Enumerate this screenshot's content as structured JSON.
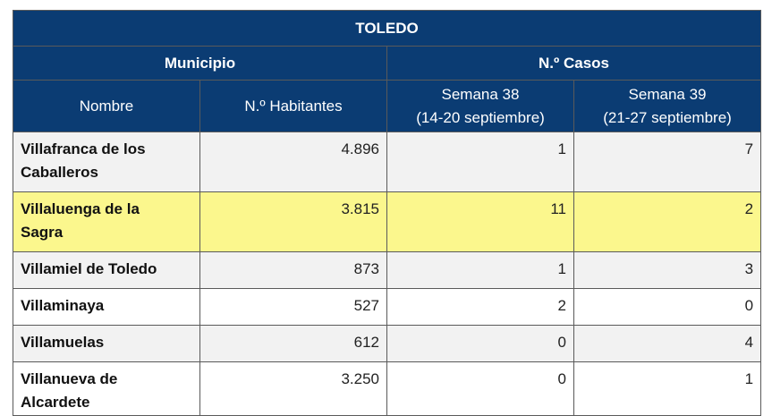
{
  "table": {
    "title": "TOLEDO",
    "group_headers": [
      "Municipio",
      "N.º Casos"
    ],
    "col_headers": [
      {
        "line1": "Nombre",
        "line2": ""
      },
      {
        "line1": "N.º Habitantes",
        "line2": ""
      },
      {
        "line1": "Semana 38",
        "line2": "(14-20 septiembre)"
      },
      {
        "line1": "Semana 39",
        "line2": "(21-27 septiembre)"
      }
    ],
    "rows": [
      {
        "name_l1": "Villafranca de los",
        "name_l2": "Caballeros",
        "habitantes": "4.896",
        "s38": "1",
        "s39": "7"
      },
      {
        "name_l1": "Villaluenga de la",
        "name_l2": "Sagra",
        "habitantes": "3.815",
        "s38": "11",
        "s39": "2"
      },
      {
        "name_l1": "Villamiel de Toledo",
        "name_l2": "",
        "habitantes": "873",
        "s38": "1",
        "s39": "3"
      },
      {
        "name_l1": "Villaminaya",
        "name_l2": "",
        "habitantes": "527",
        "s38": "2",
        "s39": "0"
      },
      {
        "name_l1": "Villamuelas",
        "name_l2": "",
        "habitantes": "612",
        "s38": "0",
        "s39": "4"
      },
      {
        "name_l1": "Villanueva de",
        "name_l2": "Alcardete",
        "habitantes": "3.250",
        "s38": "0",
        "s39": "1"
      }
    ],
    "highlight_color": "#fbf78d",
    "header_color": "#0b3c73"
  }
}
